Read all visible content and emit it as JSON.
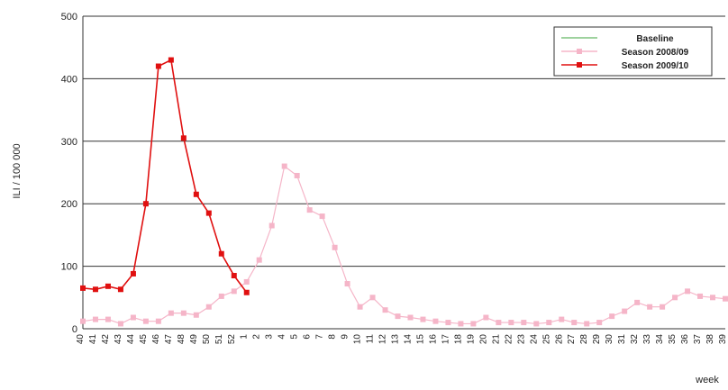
{
  "chart_data": {
    "type": "line",
    "y_label": "ILI / 100 000",
    "x_label": "week",
    "categories": [
      "40",
      "41",
      "42",
      "43",
      "44",
      "45",
      "46",
      "47",
      "48",
      "49",
      "50",
      "51",
      "52",
      "1",
      "2",
      "3",
      "4",
      "5",
      "6",
      "7",
      "8",
      "9",
      "10",
      "11",
      "12",
      "13",
      "14",
      "15",
      "16",
      "17",
      "18",
      "19",
      "20",
      "21",
      "22",
      "23",
      "24",
      "25",
      "26",
      "27",
      "28",
      "29",
      "30",
      "31",
      "32",
      "33",
      "34",
      "35",
      "36",
      "37",
      "38",
      "39"
    ],
    "series": [
      {
        "name": "Baseline",
        "color": "#7fc47f",
        "values": [
          null,
          null,
          null,
          null,
          null,
          null,
          null,
          null,
          null,
          null,
          null,
          null,
          null,
          null,
          null,
          null,
          null,
          null,
          null,
          null,
          null,
          null,
          null,
          null,
          null,
          null,
          null,
          null,
          null,
          null,
          null,
          null,
          null,
          null,
          null,
          null,
          null,
          null,
          null,
          null,
          null,
          null,
          null,
          null,
          null,
          null,
          null,
          null,
          null,
          null,
          null,
          null
        ]
      },
      {
        "name": "Season 2008/09",
        "color": "#f5b5c8",
        "values": [
          12,
          15,
          15,
          8,
          18,
          12,
          12,
          25,
          25,
          22,
          35,
          52,
          60,
          75,
          110,
          165,
          260,
          245,
          190,
          180,
          130,
          72,
          35,
          50,
          30,
          20,
          18,
          15,
          12,
          10,
          8,
          8,
          18,
          10,
          10,
          10,
          8,
          10,
          15,
          10,
          8,
          10,
          20,
          28,
          42,
          35,
          35,
          50,
          60,
          52,
          50,
          48
        ]
      },
      {
        "name": "Season 2009/10",
        "color": "#e01010",
        "values": [
          65,
          63,
          68,
          63,
          88,
          200,
          420,
          430,
          305,
          215,
          185,
          120,
          85,
          58,
          null,
          null,
          null,
          null,
          null,
          null,
          null,
          null,
          null,
          null,
          null,
          null,
          null,
          null,
          null,
          null,
          null,
          null,
          null,
          null,
          null,
          null,
          null,
          null,
          null,
          null,
          null,
          null,
          null,
          null,
          null,
          null,
          null,
          null,
          null,
          null,
          null,
          null
        ]
      }
    ],
    "ylim": [
      0,
      500
    ],
    "yticks": [
      0,
      100,
      200,
      300,
      400,
      500
    ],
    "grid": true,
    "legend": "upper right"
  }
}
